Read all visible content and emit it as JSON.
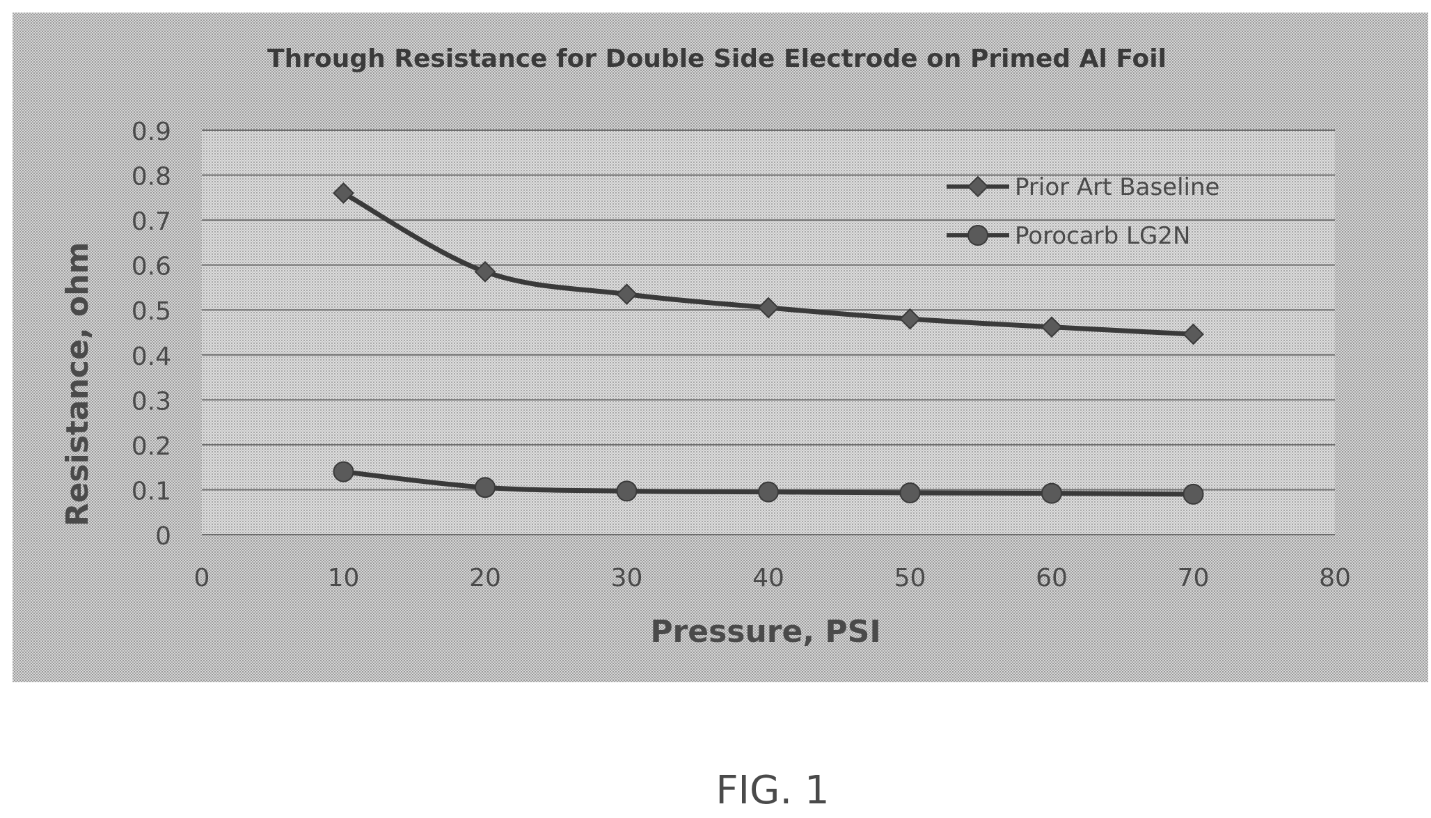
{
  "figure_caption": "FIG. 1",
  "chart_data": {
    "type": "line",
    "title": "Through Resistance for Double Side Electrode on Primed Al Foil",
    "xlabel": "Pressure, PSI",
    "ylabel": "Resistance, ohm",
    "xlim": [
      0,
      80
    ],
    "ylim": [
      0,
      0.9
    ],
    "x_ticks": [
      "0",
      "10",
      "20",
      "30",
      "40",
      "50",
      "60",
      "70",
      "80"
    ],
    "y_ticks": [
      "0",
      "0.1",
      "0.2",
      "0.3",
      "0.4",
      "0.5",
      "0.6",
      "0.7",
      "0.8",
      "0.9"
    ],
    "grid": "horizontal",
    "legend_position": "top-right",
    "x": [
      10,
      20,
      30,
      40,
      50,
      60,
      70
    ],
    "series": [
      {
        "name": "Prior Art Baseline",
        "marker": "diamond",
        "values": [
          0.76,
          0.585,
          0.535,
          0.505,
          0.48,
          0.462,
          0.446
        ]
      },
      {
        "name": "Porocarb LG2N",
        "marker": "circle",
        "values": [
          0.14,
          0.105,
          0.097,
          0.095,
          0.093,
          0.092,
          0.09
        ]
      }
    ],
    "colors": {
      "background_pattern": "#cfcfcf",
      "background_dot": "#9a9a9a",
      "gridline": "#6e6e6e",
      "line": "#3a3a3a",
      "marker_fill": "#5a5a5a",
      "text": "#4a4a4a"
    }
  }
}
